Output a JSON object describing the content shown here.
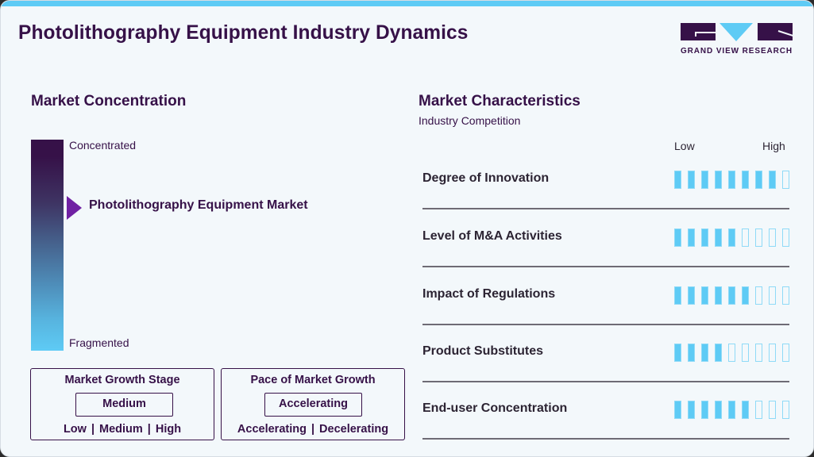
{
  "header": {
    "title": "Photolithography Equipment Industry Dynamics",
    "logo_text": "GRAND VIEW RESEARCH"
  },
  "market_concentration": {
    "title": "Market Concentration",
    "top_label": "Concentrated",
    "bottom_label": "Fragmented",
    "marker_label": "Photolithography Equipment Market",
    "colors": {
      "top": "#361148",
      "bottom": "#5ecbf5",
      "marker": "#7021a3"
    }
  },
  "growth_stage": {
    "title": "Market Growth Stage",
    "value": "Medium",
    "options": [
      "Low",
      "Medium",
      "High"
    ]
  },
  "growth_pace": {
    "title": "Pace of Market Growth",
    "value": "Accelerating",
    "options": [
      "Accelerating",
      "Decelerating"
    ]
  },
  "characteristics": {
    "title": "Market Characteristics",
    "subtitle": "Industry Competition",
    "scale_low": "Low",
    "scale_high": "High",
    "max_score": 9,
    "bar_color": "#5ecbf5",
    "rows": [
      {
        "label": "Degree of Innovation",
        "score": 8
      },
      {
        "label": "Level of M&A Activities",
        "score": 5
      },
      {
        "label": "Impact of Regulations",
        "score": 6
      },
      {
        "label": "Product Substitutes",
        "score": 4
      },
      {
        "label": "End-user Concentration",
        "score": 6
      }
    ]
  }
}
